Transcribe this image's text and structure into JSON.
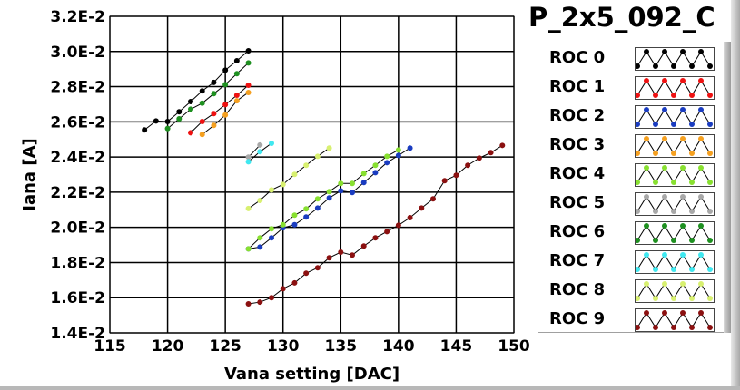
{
  "chart_data": {
    "type": "line",
    "title": "P_2x5_092_C",
    "xlabel": "Vana setting [DAC]",
    "ylabel": "Iana [A]",
    "xlim": [
      115,
      150
    ],
    "ylim": [
      0.014,
      0.032
    ],
    "grid": true,
    "legend_placement": "right",
    "x_ticks": [
      "115",
      "120",
      "125",
      "130",
      "135",
      "140",
      "145",
      "150"
    ],
    "x_tick_values": [
      115,
      120,
      125,
      130,
      135,
      140,
      145,
      150
    ],
    "y_ticks": [
      "1.4E-2",
      "1.6E-2",
      "1.8E-2",
      "2.0E-2",
      "2.2E-2",
      "2.4E-2",
      "2.6E-2",
      "2.8E-2",
      "3.0E-2",
      "3.2E-2"
    ],
    "y_tick_values": [
      0.014,
      0.016,
      0.018,
      0.02,
      0.022,
      0.024,
      0.026,
      0.028,
      0.03,
      0.032
    ],
    "series": [
      {
        "name": "ROC 0",
        "color": "#000000",
        "x": [
          118,
          119,
          120,
          121,
          122,
          123,
          124,
          125,
          126,
          127
        ],
        "y": [
          0.02554,
          0.02605,
          0.02602,
          0.02657,
          0.02715,
          0.02776,
          0.02824,
          0.02894,
          0.02947,
          0.03004
        ]
      },
      {
        "name": "ROC 1",
        "color": "#ee1111",
        "x": [
          122,
          123,
          124,
          125,
          126,
          127
        ],
        "y": [
          0.02538,
          0.02602,
          0.02647,
          0.02698,
          0.02751,
          0.02808
        ]
      },
      {
        "name": "ROC 2",
        "color": "#1a3cc0",
        "x": [
          127,
          128,
          129,
          130,
          131,
          132,
          133,
          134,
          135,
          136,
          137,
          138,
          139,
          140,
          141
        ],
        "y": [
          0.01878,
          0.01888,
          0.0194,
          0.01997,
          0.02015,
          0.02059,
          0.0211,
          0.02167,
          0.02208,
          0.02198,
          0.02255,
          0.02311,
          0.02368,
          0.02409,
          0.02451
        ]
      },
      {
        "name": "ROC 3",
        "color": "#f5a020",
        "x": [
          123,
          124,
          125,
          126,
          127
        ],
        "y": [
          0.02528,
          0.0258,
          0.02639,
          0.0272,
          0.02767
        ]
      },
      {
        "name": "ROC 4",
        "color": "#88e030",
        "x": [
          127,
          128,
          129,
          130,
          131,
          132,
          133,
          134,
          135,
          136,
          137,
          138,
          139,
          140
        ],
        "y": [
          0.01878,
          0.0194,
          0.01992,
          0.02015,
          0.02069,
          0.02105,
          0.02162,
          0.02203,
          0.0225,
          0.0225,
          0.02306,
          0.02353,
          0.02404,
          0.0244
        ]
      },
      {
        "name": "ROC 5",
        "color": "#a8a8a8",
        "x": [
          127,
          128
        ],
        "y": [
          0.02399,
          0.02468
        ]
      },
      {
        "name": "ROC 6",
        "color": "#1e9020",
        "x": [
          120,
          121,
          122,
          123,
          124,
          125,
          126,
          127
        ],
        "y": [
          0.02562,
          0.02617,
          0.02672,
          0.02706,
          0.0276,
          0.02812,
          0.02874,
          0.02935
        ]
      },
      {
        "name": "ROC 7",
        "color": "#40e8f0",
        "x": [
          127,
          128,
          129
        ],
        "y": [
          0.02373,
          0.0243,
          0.02478
        ]
      },
      {
        "name": "ROC 8",
        "color": "#d8f070",
        "x": [
          127,
          128,
          129,
          130,
          131,
          132,
          133,
          134
        ],
        "y": [
          0.02107,
          0.02153,
          0.02213,
          0.02244,
          0.02301,
          0.02353,
          0.02404,
          0.02451
        ]
      },
      {
        "name": "ROC 9",
        "color": "#8b1010",
        "x": [
          127,
          128,
          129,
          130,
          131,
          132,
          133,
          134,
          135,
          136,
          137,
          138,
          139,
          140,
          141,
          142,
          143,
          144,
          145,
          146,
          147,
          148,
          149
        ],
        "y": [
          0.01565,
          0.01575,
          0.016,
          0.01651,
          0.01684,
          0.01739,
          0.0177,
          0.01827,
          0.01859,
          0.01842,
          0.01894,
          0.0194,
          0.01976,
          0.02012,
          0.02055,
          0.0211,
          0.02162,
          0.02265,
          0.02296,
          0.02353,
          0.02394,
          0.02425,
          0.02466
        ]
      }
    ]
  }
}
